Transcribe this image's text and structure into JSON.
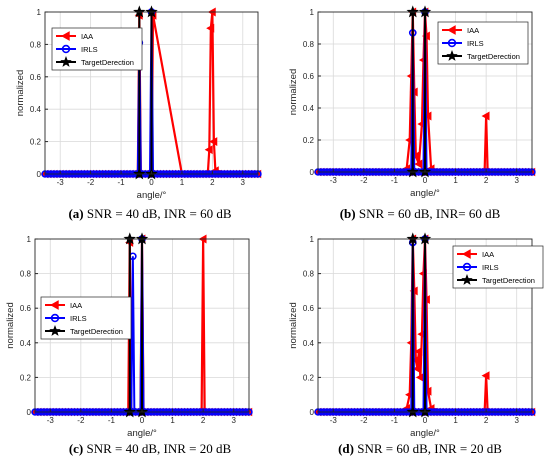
{
  "figure": {
    "panels": [
      {
        "id": "a",
        "caption_letter": "(a)",
        "caption_text": "SNR = 40 dB, INR = 60 dB"
      },
      {
        "id": "b",
        "caption_letter": "(b)",
        "caption_text": "SNR = 60 dB, INR= 60 dB"
      },
      {
        "id": "c",
        "caption_letter": "(c)",
        "caption_text": "SNR = 40 dB, INR = 20 dB"
      },
      {
        "id": "d",
        "caption_letter": "(d)",
        "caption_text": "SNR = 60 dB, INR = 20 dB"
      }
    ]
  },
  "colors": {
    "IAA": "#ff0000",
    "IRLS": "#0000ff",
    "TargetDerection": "#000000",
    "grid": "#d9d9d9"
  },
  "chart_data": [
    {
      "panel": "a",
      "type": "line",
      "xlabel": "angle/°",
      "ylabel": "normalized",
      "xlim": [
        -3.5,
        3.5
      ],
      "ylim": [
        0,
        1
      ],
      "xticks": [
        -3,
        -2,
        -1,
        0,
        1,
        2,
        3
      ],
      "yticks": [
        0,
        0.2,
        0.4,
        0.6,
        0.8,
        1
      ],
      "grid": true,
      "legend_position": "top-left",
      "series": [
        {
          "name": "IAA",
          "marker": "triangle-left",
          "x": [
            -3.5,
            -3.0,
            -2.0,
            -1.0,
            -0.45,
            -0.4,
            -0.35,
            0.0,
            0.05,
            1.0,
            1.85,
            1.9,
            1.95,
            2.0,
            2.05,
            2.1,
            3.0,
            3.5
          ],
          "y": [
            0,
            0,
            0,
            0,
            0,
            0.98,
            0,
            0,
            0.98,
            0,
            0,
            0.15,
            0.9,
            1.0,
            0.2,
            0.02,
            0,
            0
          ]
        },
        {
          "name": "IRLS",
          "marker": "circle",
          "x": [
            -3.5,
            -3.0,
            -2.0,
            -1.0,
            -0.45,
            -0.4,
            -0.35,
            -0.05,
            0.0,
            0.05,
            1.0,
            2.0,
            3.0,
            3.5
          ],
          "y": [
            0,
            0,
            0,
            0,
            0,
            0.81,
            0,
            0,
            1.0,
            0,
            0,
            0,
            0,
            0
          ]
        },
        {
          "name": "TargetDerection",
          "marker": "star",
          "type": "stem",
          "x": [
            -0.4,
            0.0
          ],
          "y": [
            1.0,
            1.0
          ]
        }
      ]
    },
    {
      "panel": "b",
      "type": "line",
      "xlabel": "angle/°",
      "ylabel": "normalized",
      "xlim": [
        -3.5,
        3.5
      ],
      "ylim": [
        0,
        1
      ],
      "xticks": [
        -3,
        -2,
        -1,
        0,
        1,
        2,
        3
      ],
      "yticks": [
        0,
        0.2,
        0.4,
        0.6,
        0.8,
        1
      ],
      "grid": true,
      "legend_position": "top-right",
      "series": [
        {
          "name": "IAA",
          "marker": "triangle-left",
          "x": [
            -3.5,
            -3.0,
            -2.0,
            -1.0,
            -0.6,
            -0.5,
            -0.45,
            -0.4,
            -0.35,
            -0.3,
            -0.2,
            -0.1,
            -0.05,
            0.0,
            0.05,
            0.1,
            0.2,
            1.0,
            1.95,
            2.0,
            2.05,
            3.0,
            3.5
          ],
          "y": [
            0,
            0,
            0,
            0,
            0.02,
            0.2,
            0.6,
            1.0,
            0.5,
            0.1,
            0.05,
            0.3,
            0.7,
            1.0,
            0.85,
            0.35,
            0.02,
            0,
            0,
            0.35,
            0,
            0,
            0
          ]
        },
        {
          "name": "IRLS",
          "marker": "circle",
          "x": [
            -3.5,
            -3.0,
            -2.0,
            -1.0,
            -0.45,
            -0.4,
            -0.35,
            -0.05,
            0.0,
            0.05,
            1.0,
            2.0,
            3.0,
            3.5
          ],
          "y": [
            0,
            0,
            0,
            0,
            0,
            0.87,
            0,
            0,
            1.0,
            0,
            0,
            0,
            0,
            0
          ]
        },
        {
          "name": "TargetDerection",
          "marker": "star",
          "type": "stem",
          "x": [
            -0.4,
            0.0
          ],
          "y": [
            1.0,
            1.0
          ]
        }
      ]
    },
    {
      "panel": "c",
      "type": "line",
      "xlabel": "angle/°",
      "ylabel": "normalized",
      "xlim": [
        -3.5,
        3.5
      ],
      "ylim": [
        0,
        1
      ],
      "xticks": [
        -3,
        -2,
        -1,
        0,
        1,
        2,
        3
      ],
      "yticks": [
        0,
        0.2,
        0.4,
        0.6,
        0.8,
        1
      ],
      "grid": true,
      "legend_position": "left",
      "series": [
        {
          "name": "IAA",
          "marker": "triangle-left",
          "x": [
            -3.5,
            -3.0,
            -2.0,
            -1.0,
            -0.45,
            -0.4,
            -0.35,
            -0.05,
            0.0,
            0.05,
            1.0,
            1.95,
            2.0,
            2.05,
            3.0,
            3.5
          ],
          "y": [
            0,
            0,
            0,
            0,
            0,
            0.98,
            0,
            0,
            1.0,
            0,
            0,
            0,
            1.0,
            0,
            0,
            0
          ]
        },
        {
          "name": "IRLS",
          "marker": "circle",
          "x": [
            -3.5,
            -3.0,
            -2.0,
            -1.0,
            -0.35,
            -0.3,
            -0.25,
            -0.05,
            0.0,
            0.05,
            1.0,
            2.0,
            3.0,
            3.5
          ],
          "y": [
            0,
            0,
            0,
            0,
            0,
            0.9,
            0,
            0,
            1.0,
            0,
            0,
            0,
            0,
            0
          ]
        },
        {
          "name": "TargetDerection",
          "marker": "star",
          "type": "stem",
          "x": [
            -0.4,
            0.0
          ],
          "y": [
            1.0,
            1.0
          ]
        }
      ]
    },
    {
      "panel": "d",
      "type": "line",
      "xlabel": "angle/°",
      "ylabel": "normalized",
      "xlim": [
        -3.5,
        3.5
      ],
      "ylim": [
        0,
        1
      ],
      "xticks": [
        -3,
        -2,
        -1,
        0,
        1,
        2,
        3
      ],
      "yticks": [
        0,
        0.2,
        0.4,
        0.6,
        0.8,
        1
      ],
      "grid": true,
      "legend_position": "top-right",
      "series": [
        {
          "name": "IAA",
          "marker": "triangle-left",
          "x": [
            -3.5,
            -3.0,
            -2.0,
            -1.0,
            -0.6,
            -0.5,
            -0.45,
            -0.4,
            -0.35,
            -0.3,
            -0.25,
            -0.2,
            -0.15,
            -0.1,
            -0.05,
            0.0,
            0.05,
            0.1,
            0.2,
            1.0,
            1.95,
            2.0,
            2.05,
            3.0,
            3.5
          ],
          "y": [
            0,
            0,
            0,
            0,
            0.02,
            0.1,
            0.4,
            1.0,
            0.7,
            0.3,
            0.25,
            0.35,
            0.2,
            0.45,
            0.8,
            1.0,
            0.65,
            0.12,
            0.02,
            0,
            0,
            0.21,
            0,
            0,
            0
          ]
        },
        {
          "name": "IRLS",
          "marker": "circle",
          "x": [
            -3.5,
            -3.0,
            -2.0,
            -1.0,
            -0.45,
            -0.4,
            -0.35,
            -0.05,
            0.0,
            0.05,
            1.0,
            2.0,
            3.0,
            3.5
          ],
          "y": [
            0,
            0,
            0,
            0,
            0,
            0.98,
            0,
            0,
            1.0,
            0,
            0,
            0,
            0,
            0
          ]
        },
        {
          "name": "TargetDerection",
          "marker": "star",
          "type": "stem",
          "x": [
            -0.4,
            0.0
          ],
          "y": [
            1.0,
            1.0
          ]
        }
      ]
    }
  ]
}
